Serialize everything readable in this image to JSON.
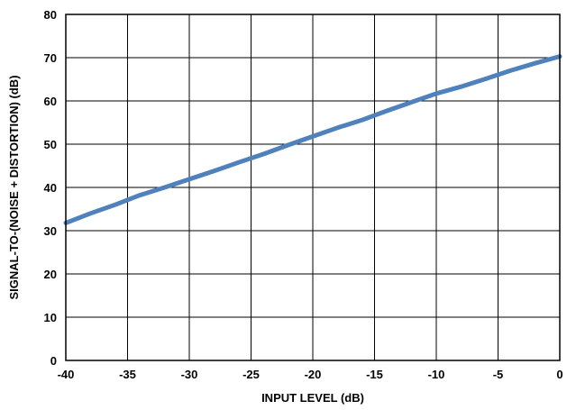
{
  "chart_data": {
    "type": "line",
    "title": "",
    "xlabel": "INPUT LEVEL (dB)",
    "ylabel": "SIGNAL-TO-(NOISE + DISTORTION) (dB)",
    "xlim": [
      -40,
      0
    ],
    "ylim": [
      0,
      80
    ],
    "x_ticks": [
      -40,
      -35,
      -30,
      -25,
      -20,
      -15,
      -10,
      -5,
      0
    ],
    "y_ticks": [
      0,
      10,
      20,
      30,
      40,
      50,
      60,
      70,
      80
    ],
    "grid": true,
    "legend": "none",
    "series": [
      {
        "color": "#4f81bd",
        "x": [
          -40,
          -38,
          -36,
          -34,
          -32,
          -30,
          -28,
          -26,
          -24,
          -22,
          -20,
          -18,
          -16,
          -14,
          -12,
          -10,
          -8,
          -6,
          -4,
          -2,
          0
        ],
        "y": [
          31.8,
          34.0,
          36.0,
          38.2,
          40.0,
          41.9,
          43.8,
          45.8,
          47.7,
          49.8,
          51.8,
          53.8,
          55.6,
          57.7,
          59.7,
          61.7,
          63.3,
          65.1,
          67.0,
          68.7,
          70.3
        ]
      }
    ]
  }
}
